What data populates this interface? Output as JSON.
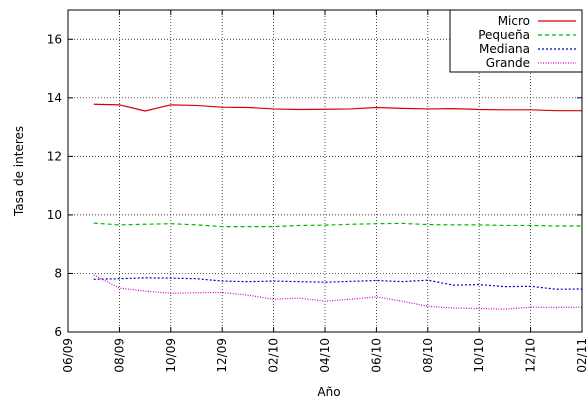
{
  "chart_data": {
    "type": "line",
    "title": "",
    "xlabel": "Año",
    "ylabel": "Tasa de interes",
    "xlim": [
      "2009-06",
      "2011-02"
    ],
    "ylim": [
      6,
      17
    ],
    "xticks": [
      "06/09",
      "08/09",
      "10/09",
      "12/09",
      "02/10",
      "04/10",
      "06/10",
      "08/10",
      "10/10",
      "12/10",
      "02/11"
    ],
    "yticks": [
      6,
      8,
      10,
      12,
      14,
      16
    ],
    "grid": true,
    "legend_position": "top-right",
    "x": [
      "2009-07",
      "2009-08",
      "2009-09",
      "2009-10",
      "2009-11",
      "2009-12",
      "2010-01",
      "2010-02",
      "2010-03",
      "2010-04",
      "2010-05",
      "2010-06",
      "2010-07",
      "2010-08",
      "2010-09",
      "2010-10",
      "2010-11",
      "2010-12",
      "2011-01",
      "2011-02"
    ],
    "series": [
      {
        "name": "Micro",
        "color": "#dd0000",
        "dash": "solid",
        "values": [
          13.78,
          13.76,
          13.55,
          13.76,
          13.74,
          13.68,
          13.67,
          13.62,
          13.6,
          13.61,
          13.62,
          13.67,
          13.64,
          13.62,
          13.63,
          13.6,
          13.59,
          13.59,
          13.56,
          13.56
        ]
      },
      {
        "name": "Pequeña",
        "color": "#00bb00",
        "dash": "dashed",
        "values": [
          9.72,
          9.66,
          9.68,
          9.7,
          9.66,
          9.6,
          9.6,
          9.6,
          9.64,
          9.65,
          9.68,
          9.7,
          9.71,
          9.67,
          9.66,
          9.66,
          9.64,
          9.64,
          9.62,
          9.62
        ]
      },
      {
        "name": "Mediana",
        "color": "#0000cc",
        "dash": "dotted",
        "values": [
          7.8,
          7.82,
          7.85,
          7.84,
          7.82,
          7.74,
          7.72,
          7.74,
          7.72,
          7.7,
          7.73,
          7.76,
          7.72,
          7.77,
          7.6,
          7.62,
          7.55,
          7.56,
          7.46,
          7.47
        ]
      },
      {
        "name": "Grande",
        "color": "#cc00cc",
        "dash": "fine-dotted",
        "values": [
          7.95,
          7.5,
          7.4,
          7.32,
          7.34,
          7.35,
          7.26,
          7.12,
          7.16,
          7.05,
          7.12,
          7.2,
          7.05,
          6.88,
          6.82,
          6.8,
          6.78,
          6.85,
          6.84,
          6.85
        ]
      }
    ]
  }
}
